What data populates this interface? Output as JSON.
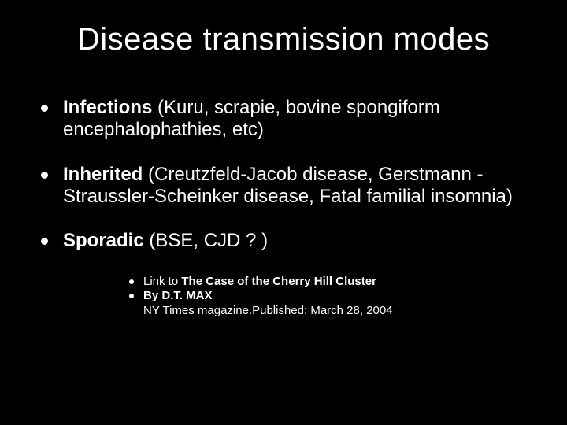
{
  "slide": {
    "background_color": "#000000",
    "text_color": "#ffffff",
    "title": "Disease transmission modes",
    "title_fontsize": 40,
    "body_fontsize": 24,
    "sub_fontsize": 15,
    "bullets": [
      {
        "bold_lead": "Infections",
        "rest": " (Kuru, scrapie, bovine spongiform encephalophathies, etc)"
      },
      {
        "bold_lead": "Inherited",
        "rest": " (Creutzfeld-Jacob disease, Gerstmann -Straussler-Scheinker disease, Fatal familial insomnia)"
      },
      {
        "bold_lead": "Sporadic",
        "rest": " (BSE, CJD ? )"
      }
    ],
    "sub_bullets": [
      {
        "prefix": "Link to ",
        "bold": "The Case of the Cherry Hill Cluster"
      },
      {
        "prefix": "",
        "bold": "By D.T. MAX"
      }
    ],
    "sub_detail": "NY Times magazine.Published: March 28, 2004"
  }
}
